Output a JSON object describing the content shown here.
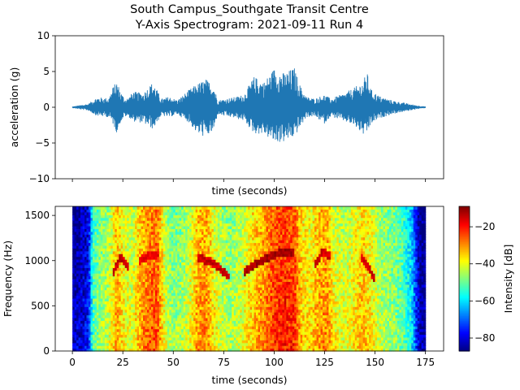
{
  "title_line1": "South Campus_Southgate Transit Centre",
  "title_line2": "Y-Axis Spectrogram: 2021-09-11 Run 4",
  "chart_data": [
    {
      "type": "line",
      "name": "acceleration time series",
      "xlabel": "time (seconds)",
      "ylabel": "acceleration (g)",
      "xlim": [
        -8.5,
        184
      ],
      "ylim": [
        -10,
        10
      ],
      "yticks": [
        -10,
        -5,
        0,
        5,
        10
      ],
      "ytick_labels": [
        "−10",
        "−5",
        "0",
        "5",
        "10"
      ],
      "x_tick_labels_shown": false,
      "grid": false,
      "color": "#1f77b4",
      "envelope": {
        "t": [
          0,
          8,
          12,
          18,
          20,
          22,
          24,
          26,
          28,
          30,
          35,
          40,
          44,
          48,
          52,
          58,
          62,
          66,
          70,
          72,
          76,
          80,
          85,
          90,
          95,
          100,
          105,
          110,
          113,
          116,
          120,
          125,
          128,
          135,
          140,
          144,
          146,
          148,
          152,
          158,
          165,
          170,
          175
        ],
        "upper": [
          0.1,
          0.5,
          1.4,
          1.3,
          2.8,
          3.7,
          2.2,
          1.2,
          1.4,
          2.2,
          2.0,
          3.6,
          1.2,
          1.5,
          1.0,
          2.5,
          3.3,
          4.0,
          3.2,
          1.0,
          1.2,
          1.4,
          1.8,
          4.3,
          3.6,
          5.5,
          4.8,
          5.6,
          3.0,
          1.5,
          1.2,
          1.8,
          1.2,
          2.0,
          2.8,
          3.6,
          5.0,
          2.5,
          1.6,
          1.0,
          0.6,
          0.3,
          0.1
        ],
        "lower": [
          -0.1,
          -0.5,
          -1.2,
          -1.4,
          -2.3,
          -3.6,
          -2.0,
          -1.3,
          -1.4,
          -2.0,
          -2.2,
          -3.1,
          -1.2,
          -1.4,
          -1.0,
          -2.2,
          -3.8,
          -4.2,
          -3.5,
          -1.0,
          -1.3,
          -1.5,
          -1.9,
          -3.7,
          -3.8,
          -5.0,
          -4.9,
          -4.2,
          -2.8,
          -1.4,
          -1.3,
          -2.3,
          -1.3,
          -2.0,
          -2.7,
          -3.9,
          -3.8,
          -2.4,
          -1.6,
          -1.0,
          -0.6,
          -0.3,
          -0.1
        ]
      }
    },
    {
      "type": "heatmap",
      "name": "spectrogram",
      "xlabel": "time (seconds)",
      "ylabel": "Frequency (Hz)",
      "xlim": [
        -8.5,
        184
      ],
      "ylim": [
        0,
        1600
      ],
      "xticks": [
        0,
        25,
        50,
        75,
        100,
        125,
        150,
        175
      ],
      "xtick_labels": [
        "0",
        "25",
        "50",
        "75",
        "100",
        "125",
        "150",
        "175"
      ],
      "yticks": [
        0,
        500,
        1000,
        1500
      ],
      "ytick_labels": [
        "0",
        "500",
        "1000",
        "1500"
      ],
      "data_extent_time": [
        0,
        175
      ],
      "colormap": "jet",
      "colorbar": {
        "label": "Intensity [dB]",
        "range": [
          -87,
          -9
        ],
        "ticks": [
          -20,
          -40,
          -60,
          -80
        ],
        "tick_labels": [
          "−20",
          "−40",
          "−60",
          "−80"
        ]
      },
      "intensity_profile_db": {
        "t": [
          0,
          4,
          8,
          10,
          14,
          18,
          22,
          26,
          30,
          33,
          38,
          42,
          46,
          50,
          54,
          58,
          62,
          66,
          70,
          74,
          78,
          82,
          86,
          90,
          95,
          100,
          105,
          110,
          114,
          118,
          122,
          126,
          130,
          135,
          140,
          144,
          148,
          152,
          156,
          160,
          164,
          168,
          172,
          175
        ],
        "db": [
          -82,
          -80,
          -76,
          -52,
          -45,
          -42,
          -30,
          -38,
          -40,
          -32,
          -25,
          -24,
          -40,
          -46,
          -44,
          -40,
          -30,
          -28,
          -36,
          -42,
          -44,
          -42,
          -38,
          -32,
          -28,
          -22,
          -20,
          -22,
          -34,
          -36,
          -30,
          -28,
          -38,
          -40,
          -36,
          -32,
          -36,
          -42,
          -44,
          -46,
          -50,
          -58,
          -82,
          -84
        ]
      },
      "tonal_arcs": [
        {
          "t": [
            20,
            24,
            28
          ],
          "f": [
            850,
            1050,
            930
          ],
          "db": -15
        },
        {
          "t": [
            33,
            38,
            43
          ],
          "f": [
            1000,
            1060,
            1080
          ],
          "db": -18
        },
        {
          "t": [
            62,
            68,
            74,
            78
          ],
          "f": [
            1030,
            1000,
            900,
            820
          ],
          "db": -15
        },
        {
          "t": [
            85,
            95,
            103,
            110
          ],
          "f": [
            880,
            1020,
            1090,
            1100
          ],
          "db": -12
        },
        {
          "t": [
            120,
            124,
            128
          ],
          "f": [
            950,
            1100,
            1050
          ],
          "db": -16
        },
        {
          "t": [
            143,
            146,
            150
          ],
          "f": [
            1050,
            950,
            800
          ],
          "db": -15
        }
      ]
    }
  ]
}
